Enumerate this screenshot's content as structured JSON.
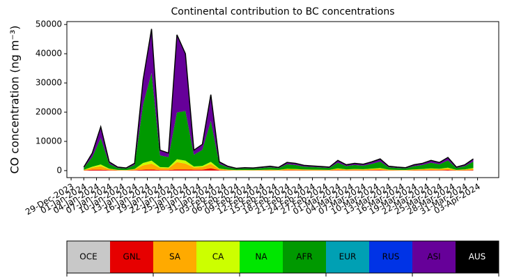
{
  "chart_data": {
    "type": "stacked_area",
    "title": "Continental contribution to BC concentrations",
    "y_label": "CO concentration (ng m⁻³)",
    "x": [
      "2024-01-01",
      "2024-01-03",
      "2024-01-05",
      "2024-01-07",
      "2024-01-09",
      "2024-01-11",
      "2024-01-13",
      "2024-01-15",
      "2024-01-17",
      "2024-01-19",
      "2024-01-21",
      "2024-01-23",
      "2024-01-25",
      "2024-01-27",
      "2024-01-29",
      "2024-01-31",
      "2024-02-02",
      "2024-02-04",
      "2024-02-06",
      "2024-02-08",
      "2024-02-10",
      "2024-02-12",
      "2024-02-14",
      "2024-02-16",
      "2024-02-18",
      "2024-02-20",
      "2024-02-22",
      "2024-02-24",
      "2024-02-26",
      "2024-02-28",
      "2024-03-01",
      "2024-03-03",
      "2024-03-05",
      "2024-03-07",
      "2024-03-09",
      "2024-03-11",
      "2024-03-13",
      "2024-03-15",
      "2024-03-17",
      "2024-03-19",
      "2024-03-21",
      "2024-03-23",
      "2024-03-25",
      "2024-03-27",
      "2024-03-29",
      "2024-03-31",
      "2024-04-02"
    ],
    "series": [
      {
        "name": "GNL",
        "values": [
          60,
          300,
          300,
          150,
          60,
          45,
          125,
          300,
          400,
          200,
          200,
          400,
          400,
          300,
          300,
          800,
          150,
          80,
          40,
          50,
          45,
          60,
          80,
          55,
          140,
          125,
          90,
          80,
          70,
          60,
          175,
          100,
          125,
          110,
          150,
          200,
          80,
          60,
          50,
          100,
          125,
          175,
          140,
          225,
          60,
          100,
          200
        ]
      },
      {
        "name": "SA",
        "values": [
          140,
          720,
          1200,
          360,
          140,
          110,
          300,
          1500,
          2000,
          700,
          600,
          2500,
          2000,
          800,
          900,
          1500,
          360,
          180,
          100,
          120,
          110,
          140,
          180,
          130,
          340,
          300,
          220,
          190,
          170,
          140,
          420,
          240,
          300,
          260,
          360,
          480,
          180,
          140,
          120,
          240,
          300,
          420,
          340,
          540,
          140,
          240,
          480
        ]
      },
      {
        "name": "CA",
        "values": [
          60,
          300,
          600,
          150,
          60,
          45,
          125,
          800,
          1000,
          300,
          300,
          1000,
          1000,
          300,
          400,
          700,
          150,
          80,
          40,
          50,
          45,
          60,
          80,
          55,
          140,
          125,
          90,
          80,
          70,
          60,
          175,
          100,
          125,
          110,
          150,
          200,
          80,
          60,
          50,
          100,
          125,
          175,
          140,
          225,
          60,
          100,
          200
        ]
      },
      {
        "name": "AFR",
        "values": [
          660,
          3300,
          9000,
          1650,
          660,
          500,
          1375,
          20000,
          30000,
          4000,
          3500,
          16000,
          17000,
          4000,
          5500,
          14000,
          1650,
          820,
          440,
          550,
          500,
          660,
          820,
          600,
          1540,
          1375,
          990,
          880,
          770,
          660,
          1925,
          1100,
          1375,
          1210,
          1650,
          2200,
          820,
          660,
          550,
          1100,
          1375,
          1925,
          1540,
          2475,
          660,
          1100,
          2200
        ]
      },
      {
        "name": "ASI",
        "values": [
          280,
          1380,
          3900,
          690,
          280,
          200,
          575,
          8400,
          15100,
          1800,
          1400,
          26600,
          19600,
          1600,
          1900,
          9000,
          690,
          340,
          180,
          230,
          200,
          280,
          340,
          260,
          640,
          575,
          410,
          370,
          320,
          280,
          805,
          460,
          575,
          510,
          690,
          920,
          340,
          280,
          230,
          460,
          575,
          805,
          640,
          1035,
          280,
          460,
          920
        ]
      }
    ],
    "xlim": [
      "2023-12-28",
      "2024-04-08"
    ],
    "xticks": [
      {
        "value": "2023-12-29",
        "label": "29-Dec-2023"
      },
      {
        "value": "2024-01-01",
        "label": "01-Jan-2024"
      },
      {
        "value": "2024-01-04",
        "label": "04-Jan-2024"
      },
      {
        "value": "2024-01-07",
        "label": "07-Jan-2024"
      },
      {
        "value": "2024-01-10",
        "label": "10-Jan-2024"
      },
      {
        "value": "2024-01-13",
        "label": "13-Jan-2024"
      },
      {
        "value": "2024-01-16",
        "label": "16-Jan-2024"
      },
      {
        "value": "2024-01-19",
        "label": "19-Jan-2024"
      },
      {
        "value": "2024-01-22",
        "label": "22-Jan-2024"
      },
      {
        "value": "2024-01-25",
        "label": "25-Jan-2024"
      },
      {
        "value": "2024-01-28",
        "label": "28-Jan-2024"
      },
      {
        "value": "2024-01-31",
        "label": "31-Jan-2024"
      },
      {
        "value": "2024-02-03",
        "label": "03-Feb-2024"
      },
      {
        "value": "2024-02-06",
        "label": "06-Feb-2024"
      },
      {
        "value": "2024-02-09",
        "label": "09-Feb-2024"
      },
      {
        "value": "2024-02-12",
        "label": "12-Feb-2024"
      },
      {
        "value": "2024-02-15",
        "label": "15-Feb-2024"
      },
      {
        "value": "2024-02-18",
        "label": "18-Feb-2024"
      },
      {
        "value": "2024-02-21",
        "label": "21-Feb-2024"
      },
      {
        "value": "2024-02-24",
        "label": "24-Feb-2024"
      },
      {
        "value": "2024-02-27",
        "label": "27-Feb-2024"
      },
      {
        "value": "2024-03-01",
        "label": "01-Mar-2024"
      },
      {
        "value": "2024-03-04",
        "label": "04-Mar-2024"
      },
      {
        "value": "2024-03-07",
        "label": "07-Mar-2024"
      },
      {
        "value": "2024-03-10",
        "label": "10-Mar-2024"
      },
      {
        "value": "2024-03-13",
        "label": "13-Mar-2024"
      },
      {
        "value": "2024-03-16",
        "label": "16-Mar-2024"
      },
      {
        "value": "2024-03-19",
        "label": "19-Mar-2024"
      },
      {
        "value": "2024-03-22",
        "label": "22-Mar-2024"
      },
      {
        "value": "2024-03-25",
        "label": "25-Mar-2024"
      },
      {
        "value": "2024-03-28",
        "label": "28-Mar-2024"
      },
      {
        "value": "2024-03-31",
        "label": "31-Mar-2024"
      },
      {
        "value": "2024-04-03",
        "label": "03-Apr-2024"
      }
    ],
    "ylim": [
      -2400,
      51000
    ],
    "yticks": [
      0,
      10000,
      20000,
      30000,
      40000,
      50000
    ],
    "colorbar": {
      "labels": [
        "OCE",
        "GNL",
        "SA",
        "CA",
        "NA",
        "AFR",
        "EUR",
        "RUS",
        "ASI",
        "AUS"
      ],
      "colors": [
        "#c8c8c8",
        "#e60000",
        "#ffaa00",
        "#ccff00",
        "#00e600",
        "#009900",
        "#00a0b4",
        "#0033e6",
        "#660099",
        "#000000"
      ]
    }
  }
}
